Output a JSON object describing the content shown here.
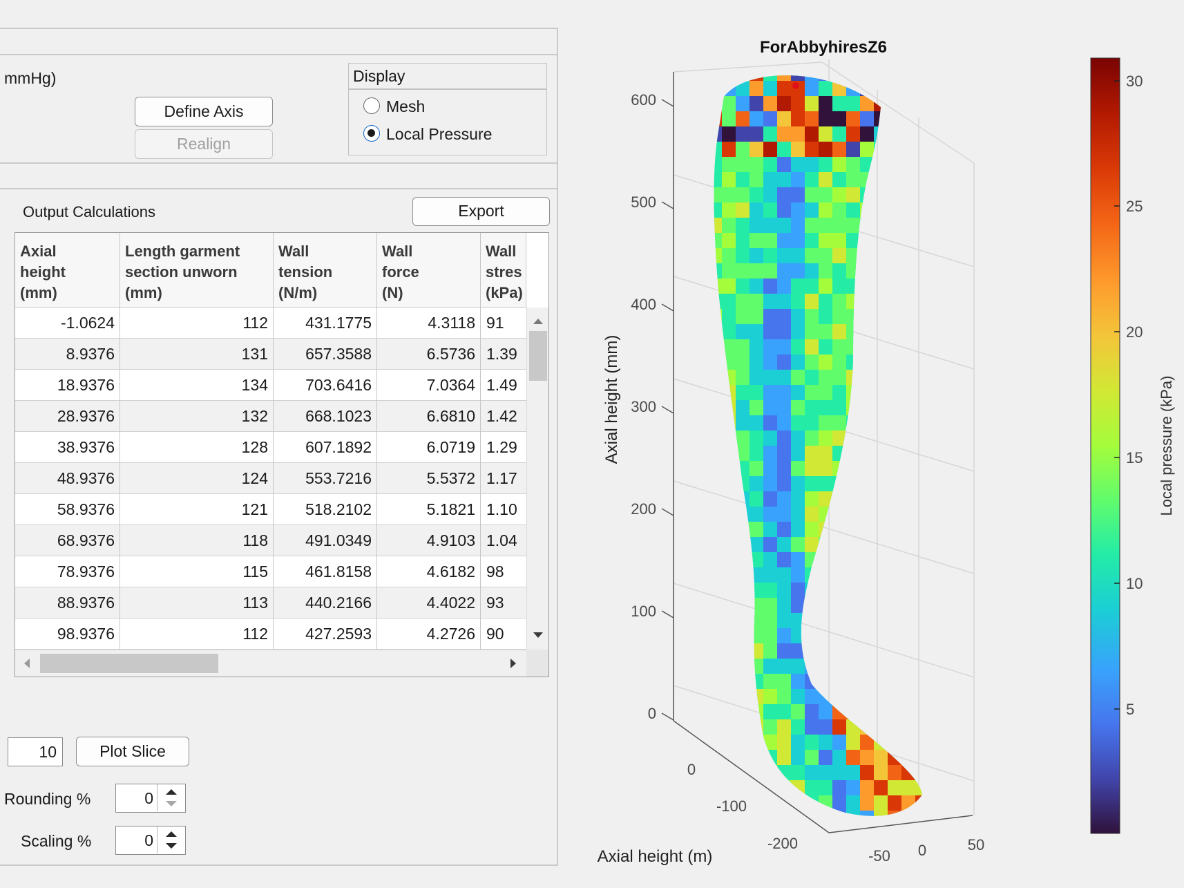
{
  "top": {
    "pressure_label_fragment": "mmHg)",
    "define_axis_label": "Define Axis",
    "realign_label": "Realign"
  },
  "display": {
    "title": "Display",
    "options": [
      {
        "label": "Mesh",
        "selected": false
      },
      {
        "label": "Local Pressure",
        "selected": true
      }
    ]
  },
  "output": {
    "title": "Output Calculations",
    "export_label": "Export"
  },
  "table": {
    "headers": [
      "Axial\nheight\n(mm)",
      "Length garment\nsection unworn\n(mm)",
      "Wall\ntension\n(N/m)",
      "Wall\nforce\n(N)",
      "Wall\nstres\n(kPa)"
    ],
    "rows": [
      [
        "-1.0624",
        "112",
        "431.1775",
        "4.3118",
        "91"
      ],
      [
        "8.9376",
        "131",
        "657.3588",
        "6.5736",
        "1.39"
      ],
      [
        "18.9376",
        "134",
        "703.6416",
        "7.0364",
        "1.49"
      ],
      [
        "28.9376",
        "132",
        "668.1023",
        "6.6810",
        "1.42"
      ],
      [
        "38.9376",
        "128",
        "607.1892",
        "6.0719",
        "1.29"
      ],
      [
        "48.9376",
        "124",
        "553.7216",
        "5.5372",
        "1.17"
      ],
      [
        "58.9376",
        "121",
        "518.2102",
        "5.1821",
        "1.10"
      ],
      [
        "68.9376",
        "118",
        "491.0349",
        "4.9103",
        "1.04"
      ],
      [
        "78.9376",
        "115",
        "461.8158",
        "4.6182",
        "98"
      ],
      [
        "88.9376",
        "113",
        "440.2166",
        "4.4022",
        "93"
      ],
      [
        "98.9376",
        "112",
        "427.2593",
        "4.2726",
        "90"
      ]
    ]
  },
  "slice": {
    "value": "10",
    "plot_label": "Plot Slice"
  },
  "rounding": {
    "label": "Rounding %",
    "value": "0"
  },
  "scaling": {
    "label": "Scaling %",
    "value": "0"
  },
  "plot": {
    "title": "ForAbbyhiresZ6",
    "zlabel": "Axial height (mm)",
    "xlabel": "Axial height (m)",
    "z_ticks": [
      "600",
      "500",
      "400",
      "300",
      "200",
      "100",
      "0"
    ],
    "y_ticks": [
      "0",
      "-100",
      "-200"
    ],
    "x_ticks": [
      "-50",
      "0",
      "50"
    ],
    "colorbar_label": "Local pressure (kPa)",
    "colorbar_ticks": [
      "30",
      "25",
      "20",
      "15",
      "10",
      "5"
    ],
    "colormap": "turbo"
  },
  "chart_data": {
    "type": "surface",
    "title": "ForAbbyhiresZ6",
    "zlabel": "Axial height (mm)",
    "xlabel": "Axial height (m)",
    "zlim": [
      0,
      620
    ],
    "color_range": [
      0,
      31
    ],
    "colorbar_label": "Local pressure (kPa)"
  }
}
